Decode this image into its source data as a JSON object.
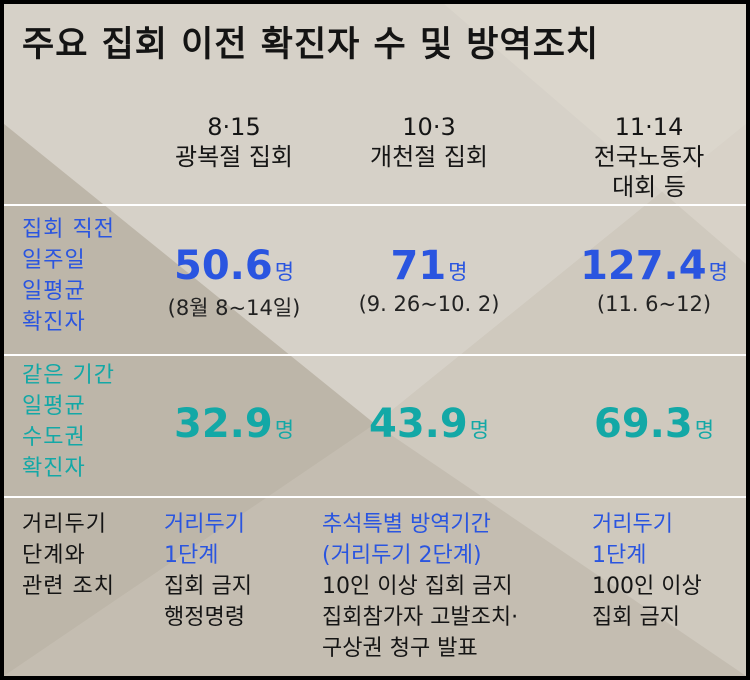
{
  "title": "주요 집회 이전 확진자 수 및 방역조치",
  "columns": [
    {
      "date": "8·15",
      "name": "광복절 집회"
    },
    {
      "date": "10·3",
      "name": "개천절 집회"
    },
    {
      "date": "11·14",
      "name": "전국노동자 대회 등",
      "name_lines": [
        "전국노동자",
        "대회 등"
      ]
    }
  ],
  "rows": {
    "weekly_avg": {
      "label_lines": [
        "집회 직전",
        "일주일",
        "일평균",
        "확진자"
      ],
      "values": [
        {
          "value": "50.6",
          "unit": "명",
          "period": "(8월 8~14일)"
        },
        {
          "value": "71",
          "unit": "명",
          "period": "(9. 26~10. 2)"
        },
        {
          "value": "127.4",
          "unit": "명",
          "period": "(11. 6~12)"
        }
      ]
    },
    "metro_avg": {
      "label_lines": [
        "같은 기간",
        "일평균",
        "수도권",
        "확진자"
      ],
      "values": [
        {
          "value": "32.9",
          "unit": "명"
        },
        {
          "value": "43.9",
          "unit": "명"
        },
        {
          "value": "69.3",
          "unit": "명"
        }
      ]
    },
    "measures": {
      "label_lines": [
        "거리두기",
        "단계와",
        "관련 조치"
      ],
      "cells": [
        {
          "blue_lines": [
            "거리두기",
            "1단계"
          ],
          "dark_lines": [
            "집회 금지",
            "행정명령"
          ]
        },
        {
          "blue_lines": [
            "추석특별 방역기간",
            "(거리두기 2단계)"
          ],
          "dark_lines": [
            "10인 이상 집회 금지",
            "집회참가자 고발조치·",
            "구상권 청구 발표"
          ]
        },
        {
          "blue_lines": [
            "거리두기",
            "1단계"
          ],
          "dark_lines": [
            "100인 이상",
            "집회 금지"
          ]
        }
      ]
    }
  },
  "colors": {
    "blue": "#2a55e0",
    "teal": "#13a8a6",
    "background": "#c9c3b8",
    "text": "#151515"
  }
}
